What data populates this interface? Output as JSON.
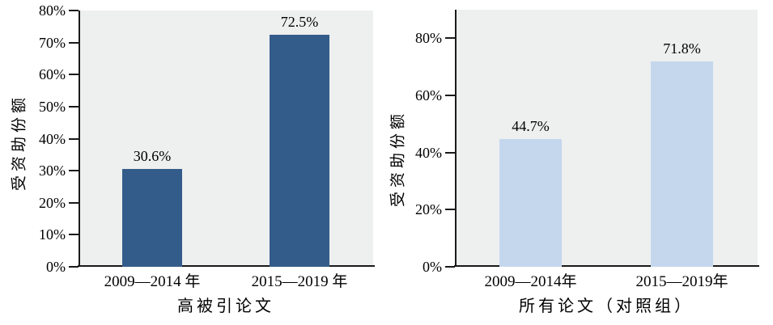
{
  "colors": {
    "plot_background": "#EEEFEF",
    "axis": "#1A1A1A",
    "text": "#000000",
    "bar_dark_blue": "#335C8A",
    "bar_light_blue": "#C4D7ED"
  },
  "chart_data": [
    {
      "type": "bar",
      "title": "",
      "categories": [
        "2009—2014 年",
        "2015—2019 年"
      ],
      "values": [
        30.6,
        72.5
      ],
      "value_labels": [
        "30.6%",
        "72.5%"
      ],
      "xlabel": "高被引论文",
      "ylabel": "受资助份额",
      "ylim": [
        0,
        80
      ],
      "yticks": [
        {
          "value": 0,
          "label": "0%"
        },
        {
          "value": 10,
          "label": "10%"
        },
        {
          "value": 20,
          "label": "20%"
        },
        {
          "value": 30,
          "label": "30%"
        },
        {
          "value": 40,
          "label": "40%"
        },
        {
          "value": 50,
          "label": "50%"
        },
        {
          "value": 60,
          "label": "60%"
        },
        {
          "value": 70,
          "label": "70%"
        },
        {
          "value": 80,
          "label": "80%"
        }
      ],
      "bar_color": "#335C8A",
      "grid": false,
      "legend": "none"
    },
    {
      "type": "bar",
      "title": "",
      "categories": [
        "2009—2014年",
        "2015—2019年"
      ],
      "values": [
        44.7,
        71.8
      ],
      "value_labels": [
        "44.7%",
        "71.8%"
      ],
      "xlabel": "所有论文（对照组）",
      "ylabel": "受资助份额",
      "ylim": [
        0,
        90
      ],
      "yticks": [
        {
          "value": 0,
          "label": "0%"
        },
        {
          "value": 20,
          "label": "20%"
        },
        {
          "value": 40,
          "label": "40%"
        },
        {
          "value": 60,
          "label": "60%"
        },
        {
          "value": 80,
          "label": "80%"
        }
      ],
      "bar_color": "#C4D7ED",
      "grid": false,
      "legend": "none"
    }
  ]
}
